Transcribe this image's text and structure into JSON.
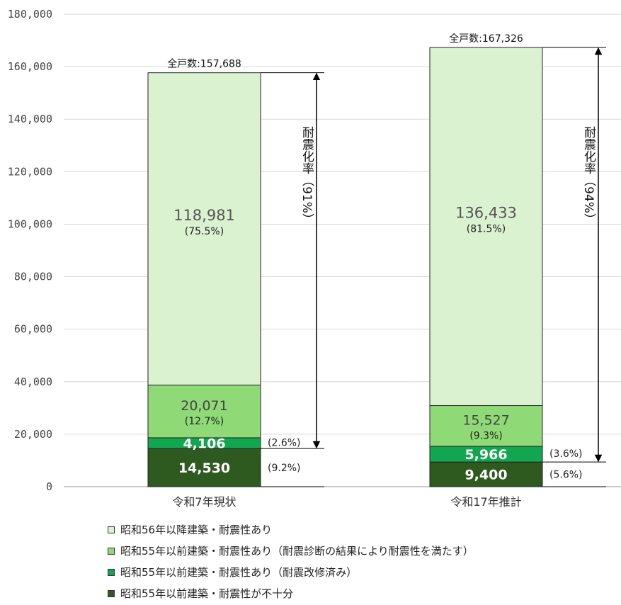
{
  "chart_data": {
    "type": "bar",
    "stacked": true,
    "categories": [
      "令和7年現状",
      "令和17年推計"
    ],
    "series": [
      {
        "name": "昭和55年以前建築・耐震性が不十分",
        "values": [
          14530,
          9400
        ],
        "labels": [
          "14,530",
          "9,400"
        ],
        "percents": [
          "(9.2%)",
          "(5.6%)"
        ],
        "color": "#2e5a1f"
      },
      {
        "name": "昭和55年以前建築・耐震性あり（耐震改修済み）",
        "values": [
          4106,
          5966
        ],
        "labels": [
          "4,106",
          "5,966"
        ],
        "percents": [
          "(2.6%)",
          "(3.6%)"
        ],
        "color": "#12a650"
      },
      {
        "name": "昭和55年以前建築・耐震性あり（耐震診断の結果により耐震性を満たす）",
        "values": [
          20071,
          15527
        ],
        "labels": [
          "20,071",
          "15,527"
        ],
        "percents": [
          "(12.7%)",
          "(9.3%)"
        ],
        "color": "#8fd977"
      },
      {
        "name": "昭和56年以降建築・耐震性あり",
        "values": [
          118981,
          136433
        ],
        "labels": [
          "118,981",
          "136,433"
        ],
        "percents": [
          "(75.5%)",
          "(81.5%)"
        ],
        "color": "#daf2d0"
      }
    ],
    "totals": [
      157688,
      167326
    ],
    "total_labels": [
      "全戸数:157,688",
      "全戸数:167,326"
    ],
    "resistance_labels": [
      "耐震化率（91%）",
      "耐震化率（94%）"
    ],
    "ylim": [
      0,
      180000
    ],
    "yticks": [
      0,
      20000,
      40000,
      60000,
      80000,
      100000,
      120000,
      140000,
      160000,
      180000
    ],
    "ytick_labels": [
      "0",
      "20,000",
      "40,000",
      "60,000",
      "80,000",
      "100,000",
      "120,000",
      "140,000",
      "160,000",
      "180,000"
    ],
    "grid": true,
    "legend_position": "bottom",
    "xlabel": "",
    "ylabel": "",
    "title": ""
  },
  "legend": [
    {
      "label": "昭和56年以降建築・耐震性あり",
      "color": "#daf2d0"
    },
    {
      "label": "昭和55年以前建築・耐震性あり（耐震診断の結果により耐震性を満たす）",
      "color": "#8fd977"
    },
    {
      "label": "昭和55年以前建築・耐震性あり（耐震改修済み）",
      "color": "#12a650"
    },
    {
      "label": "昭和55年以前建築・耐震性が不十分",
      "color": "#2e5a1f"
    }
  ]
}
